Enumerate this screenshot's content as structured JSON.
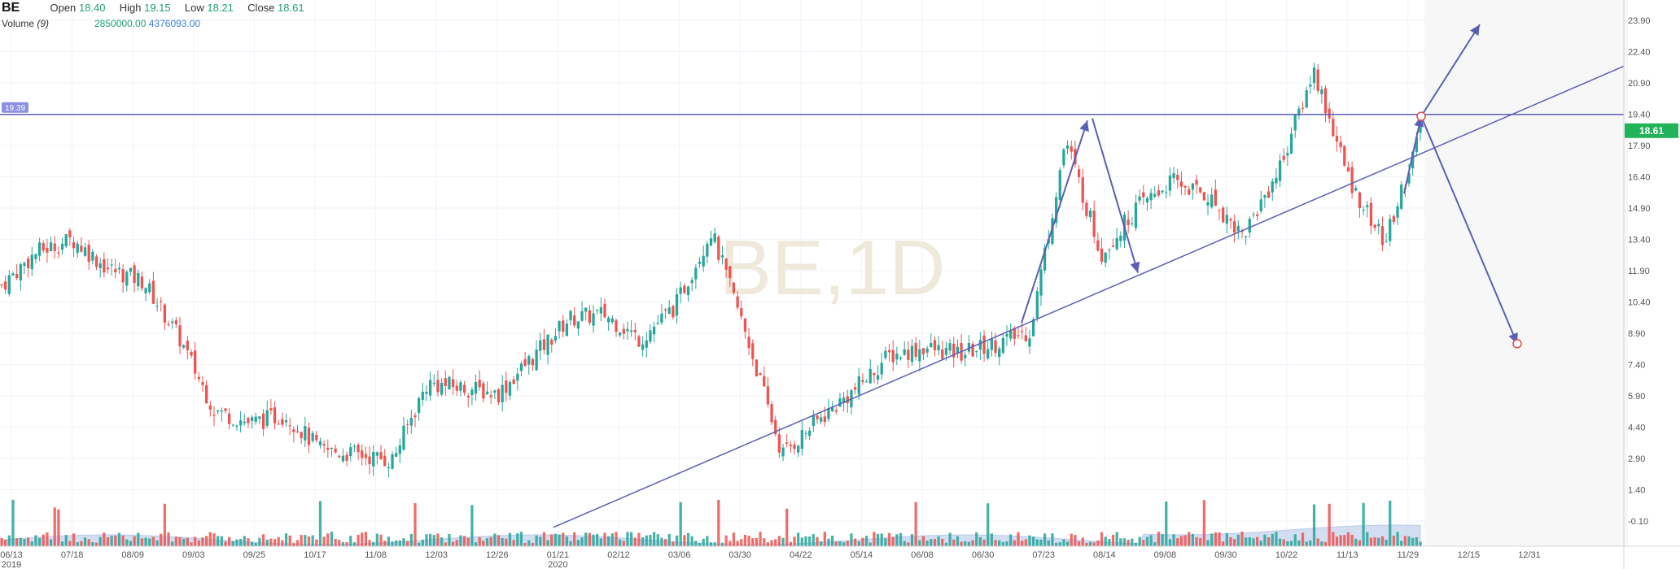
{
  "header": {
    "symbol": "BE",
    "open_label": "Open",
    "open_value": "18.40",
    "high_label": "High",
    "high_value": "19.15",
    "low_label": "Low",
    "low_value": "18.21",
    "close_label": "Close",
    "close_value": "18.61",
    "volume_label": "Volume",
    "volume_period": "(9)",
    "volume_value": "2850000.00",
    "volume_ma_value": "4376093.00"
  },
  "watermark": "BE,1D",
  "colors": {
    "up": "#26a69a",
    "down": "#ef5350",
    "drawing": "#5b5fb4",
    "price_tag": "#22b35a",
    "volume_area": "#b9c9ea",
    "level_tag": "#8b8fe0"
  },
  "chart_data": {
    "type": "candlestick",
    "y_ticks": [
      "23.90",
      "22.40",
      "20.90",
      "19.40",
      "17.90",
      "16.40",
      "14.90",
      "13.40",
      "11.90",
      "10.40",
      "8.90",
      "7.40",
      "5.90",
      "4.40",
      "2.90",
      "1.40",
      "-0.10"
    ],
    "x_ticks": [
      "06/13",
      "07/18",
      "08/09",
      "09/03",
      "09/25",
      "10/17",
      "11/08",
      "12/03",
      "12/26",
      "01/21",
      "02/12",
      "03/06",
      "03/30",
      "04/22",
      "05/14",
      "06/08",
      "06/30",
      "07/23",
      "08/14",
      "09/08",
      "09/30",
      "10/22",
      "11/13",
      "11/29",
      "12/15",
      "12/31"
    ],
    "year_labels": [
      {
        "tick": "06/13",
        "label": "2019"
      },
      {
        "tick": "01/21",
        "label": "2020"
      }
    ],
    "last_price": "18.61",
    "horizontal_level": "19.39",
    "series": [
      {
        "name": "BE close (approx.)",
        "values": [
          11.2,
          12.8,
          13.4,
          12.0,
          11.4,
          8.7,
          5.2,
          4.6,
          5.0,
          3.3,
          3.1,
          2.8,
          6.5,
          6.3,
          6.0,
          7.8,
          9.6,
          9.8,
          8.6,
          10.2,
          13.8,
          8.8,
          3.1,
          4.7,
          6.1,
          7.8,
          8.2,
          7.9,
          8.4,
          9.0,
          18.2,
          12.7,
          14.9,
          16.2,
          15.5,
          13.6,
          16.7,
          21.5,
          16.2,
          13.2,
          18.6
        ]
      }
    ],
    "annotations": {
      "trendline": "rising support line",
      "arrows": [
        "up-leg into 19.39",
        "down-leg",
        "breakout up",
        "breakdown target"
      ]
    }
  }
}
